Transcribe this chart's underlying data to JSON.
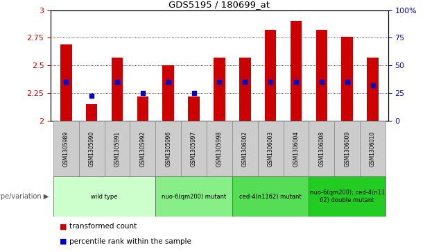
{
  "title": "GDS5195 / 180699_at",
  "samples": [
    "GSM1305989",
    "GSM1305990",
    "GSM1305991",
    "GSM1305992",
    "GSM1305996",
    "GSM1305997",
    "GSM1305998",
    "GSM1306002",
    "GSM1306003",
    "GSM1306004",
    "GSM1306008",
    "GSM1306009",
    "GSM1306010"
  ],
  "transformed_count": [
    2.69,
    2.15,
    2.57,
    2.22,
    2.5,
    2.22,
    2.57,
    2.57,
    2.82,
    2.9,
    2.82,
    2.76,
    2.57
  ],
  "percentile_rank": [
    0.35,
    0.23,
    0.35,
    0.25,
    0.35,
    0.25,
    0.35,
    0.35,
    0.35,
    0.35,
    0.35,
    0.35,
    0.32
  ],
  "ylim": [
    2.0,
    3.0
  ],
  "ylim_right": [
    0,
    100
  ],
  "yticks": [
    2.0,
    2.25,
    2.5,
    2.75,
    3.0
  ],
  "yticks_right": [
    0,
    25,
    50,
    75,
    100
  ],
  "groups": [
    {
      "label": "wild type",
      "start": 0,
      "end": 4,
      "color": "#ccffcc"
    },
    {
      "label": "nuo-6(qm200) mutant",
      "start": 4,
      "end": 7,
      "color": "#88ee88"
    },
    {
      "label": "ced-4(n1162) mutant",
      "start": 7,
      "end": 10,
      "color": "#55dd55"
    },
    {
      "label": "nuo-6(qm200); ced-4(n11\n62) double mutant",
      "start": 10,
      "end": 13,
      "color": "#22cc22"
    }
  ],
  "bar_color": "#cc0000",
  "percentile_color": "#0000cc",
  "sample_bg_color": "#cccccc",
  "legend_red_label": "transformed count",
  "legend_blue_label": "percentile rank within the sample",
  "genotype_label": "genotype/variation",
  "bar_width": 0.45,
  "tick_color_left": "#cc0000",
  "tick_color_right": "#0000cc"
}
